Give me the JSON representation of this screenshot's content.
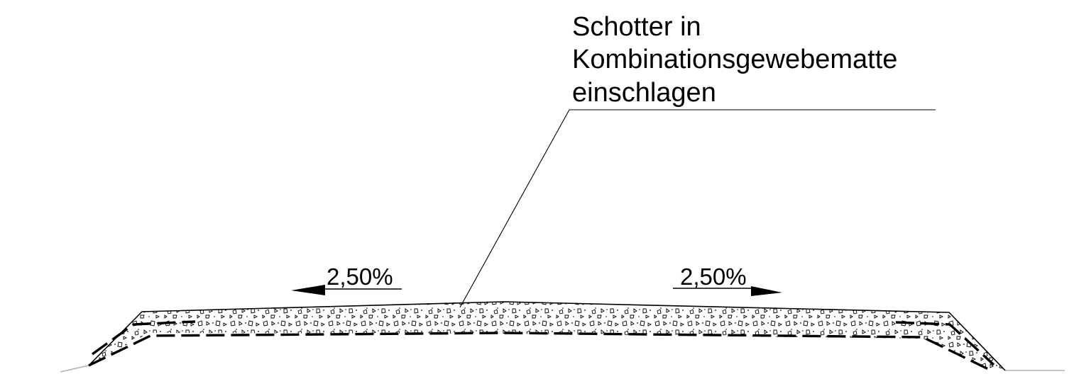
{
  "annotation": {
    "lines": [
      "Schotter in",
      "Kombinationsgewebematte",
      "einschlagen"
    ]
  },
  "slopes": {
    "left": "2,50%",
    "right": "2,50%"
  },
  "colors": {
    "line": "#000000",
    "ground": "#b0b0b0",
    "background": "#ffffff"
  },
  "hatch": "gravel-fill"
}
